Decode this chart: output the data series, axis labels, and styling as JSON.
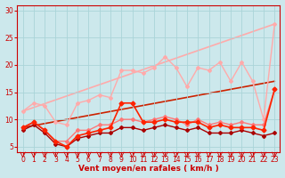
{
  "title": "",
  "xlabel": "Vent moyen/en rafales ( km/h )",
  "background_color": "#cce8ec",
  "grid_color": "#aad4d8",
  "xlim": [
    -0.5,
    23.5
  ],
  "ylim": [
    4.0,
    31.0
  ],
  "yticks": [
    5,
    10,
    15,
    20,
    25,
    30
  ],
  "xticks": [
    0,
    1,
    2,
    3,
    4,
    5,
    6,
    7,
    8,
    9,
    10,
    11,
    12,
    13,
    14,
    15,
    16,
    17,
    18,
    19,
    20,
    21,
    22,
    23
  ],
  "series": [
    {
      "x": [
        0,
        23
      ],
      "y": [
        11.5,
        27.5
      ],
      "color": "#ffaaaa",
      "lw": 1.2,
      "marker": null,
      "zorder": 1
    },
    {
      "x": [
        0,
        23
      ],
      "y": [
        8.5,
        17.0
      ],
      "color": "#cc2200",
      "lw": 1.2,
      "marker": null,
      "zorder": 1
    },
    {
      "x": [
        0,
        1,
        2,
        3,
        4,
        5,
        6,
        7,
        8,
        9,
        10,
        11,
        12,
        13,
        14,
        15,
        16,
        17,
        18,
        19,
        20,
        21,
        22,
        23
      ],
      "y": [
        11.5,
        13.0,
        12.5,
        9.5,
        9.0,
        13.0,
        13.5,
        14.5,
        14.0,
        19.0,
        19.0,
        18.5,
        19.5,
        21.5,
        19.5,
        16.0,
        19.5,
        19.0,
        20.5,
        17.0,
        20.5,
        17.0,
        10.0,
        27.5
      ],
      "color": "#ffaaaa",
      "lw": 1.0,
      "marker": "D",
      "markersize": 2.0,
      "zorder": 2
    },
    {
      "x": [
        0,
        1,
        2,
        3,
        4,
        5,
        6,
        7,
        8,
        9,
        10,
        11,
        12,
        13,
        14,
        15,
        16,
        17,
        18,
        19,
        20,
        21,
        22,
        23
      ],
      "y": [
        8.5,
        9.5,
        8.0,
        6.0,
        6.0,
        8.0,
        8.0,
        9.0,
        9.0,
        10.0,
        10.0,
        9.5,
        10.0,
        10.5,
        10.0,
        9.0,
        10.0,
        9.0,
        9.5,
        9.0,
        9.5,
        9.0,
        9.0,
        15.5
      ],
      "color": "#ff7777",
      "lw": 1.0,
      "marker": "D",
      "markersize": 2.0,
      "zorder": 3
    },
    {
      "x": [
        0,
        1,
        2,
        3,
        4,
        5,
        6,
        7,
        8,
        9,
        10,
        11,
        12,
        13,
        14,
        15,
        16,
        17,
        18,
        19,
        20,
        21,
        22,
        23
      ],
      "y": [
        8.5,
        9.5,
        8.0,
        6.0,
        5.0,
        7.0,
        7.5,
        8.0,
        8.5,
        13.0,
        13.0,
        9.5,
        9.5,
        10.0,
        9.5,
        9.5,
        9.5,
        8.5,
        9.0,
        8.5,
        8.5,
        8.5,
        8.0,
        15.5
      ],
      "color": "#ff2200",
      "lw": 1.2,
      "marker": "D",
      "markersize": 2.5,
      "zorder": 5
    },
    {
      "x": [
        0,
        1,
        2,
        3,
        4,
        5,
        6,
        7,
        8,
        9,
        10,
        11,
        12,
        13,
        14,
        15,
        16,
        17,
        18,
        19,
        20,
        21,
        22,
        23
      ],
      "y": [
        8.0,
        9.0,
        7.5,
        5.5,
        5.0,
        6.5,
        7.0,
        7.5,
        7.5,
        8.5,
        8.5,
        8.0,
        8.5,
        9.0,
        8.5,
        8.0,
        8.5,
        7.5,
        7.5,
        7.5,
        8.0,
        7.5,
        7.0,
        7.5
      ],
      "color": "#aa0000",
      "lw": 1.0,
      "marker": "D",
      "markersize": 2.0,
      "zorder": 4
    }
  ],
  "xlabel_color": "#cc0000",
  "xlabel_fontsize": 6.5,
  "tick_fontsize": 5.5,
  "tick_color": "#cc0000",
  "axis_color": "#cc0000",
  "arrow_color": "#cc0000"
}
